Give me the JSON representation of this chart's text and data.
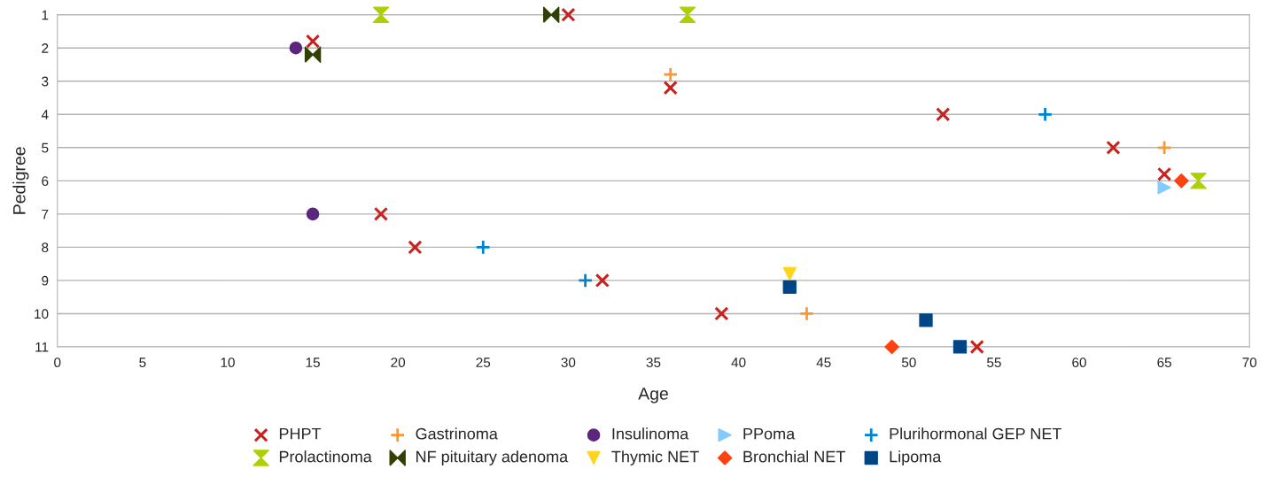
{
  "chart_data": {
    "type": "scatter",
    "xlabel": "Age",
    "ylabel": "Pedigree",
    "xlim": [
      0,
      70
    ],
    "xticks": [
      0,
      5,
      10,
      15,
      20,
      25,
      30,
      35,
      40,
      45,
      50,
      55,
      60,
      65,
      70
    ],
    "ylim": [
      11,
      1
    ],
    "yticks": [
      1,
      2,
      3,
      4,
      5,
      6,
      7,
      8,
      9,
      10,
      11
    ],
    "grid": "y",
    "legend": "bottom",
    "series": [
      {
        "name": "PHPT",
        "color": "#c9211e",
        "marker": "x",
        "x": [
          15,
          30,
          36,
          52,
          62,
          65,
          19,
          21,
          32,
          39,
          54
        ],
        "values": [
          1.8,
          1,
          3.2,
          4,
          5,
          5.8,
          7,
          8,
          9,
          10,
          11
        ]
      },
      {
        "name": "Gastrinoma",
        "color": "#ff972f",
        "marker": "plus",
        "x": [
          36,
          65,
          44
        ],
        "values": [
          2.8,
          5,
          10
        ]
      },
      {
        "name": "Insulinoma",
        "color": "#5b277d",
        "marker": "circle",
        "x": [
          14,
          15
        ],
        "values": [
          2,
          7
        ]
      },
      {
        "name": "PPoma",
        "color": "#83caff",
        "marker": "triangle_right",
        "x": [
          65
        ],
        "values": [
          6.2
        ]
      },
      {
        "name": "Plurihormonal GEP NET",
        "color": "#0084d1",
        "marker": "plus",
        "x": [
          58,
          25,
          31
        ],
        "values": [
          4,
          8,
          9
        ]
      },
      {
        "name": "Prolactinoma",
        "color": "#aecf00",
        "x": [
          19,
          37,
          67
        ],
        "values": [
          1,
          1,
          6
        ]
      },
      {
        "name": "NF pituitary adenoma",
        "color": "#314004",
        "x": [
          29,
          15
        ],
        "values": [
          1,
          2.2
        ]
      },
      {
        "name": "Thymic NET",
        "color": "#ffd320",
        "marker": "triangle_down",
        "x": [
          43
        ],
        "values": [
          8.8
        ]
      },
      {
        "name": "Bronchial NET",
        "color": "#ff420e",
        "marker": "diamond",
        "x": [
          66,
          49
        ],
        "values": [
          6,
          11
        ]
      },
      {
        "name": "Lipoma",
        "color": "#004586",
        "marker": "square",
        "x": [
          43,
          51,
          53
        ],
        "values": [
          9.2,
          10.2,
          11
        ]
      }
    ]
  }
}
